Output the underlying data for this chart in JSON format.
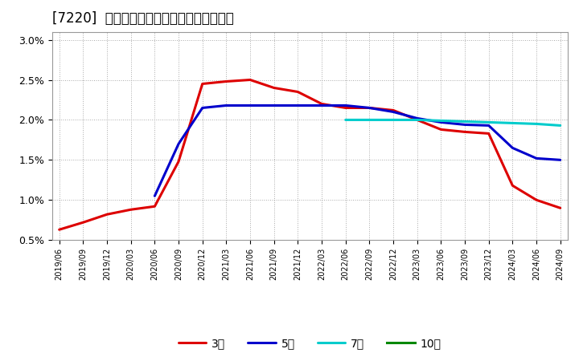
{
  "title": "[7220]  経常利益マージンの標準偏差の推移",
  "title_fontsize": 12,
  "background_color": "#ffffff",
  "grid_color": "#aaaaaa",
  "ylim": [
    0.005,
    0.031
  ],
  "yticks": [
    0.005,
    0.01,
    0.015,
    0.02,
    0.025,
    0.03
  ],
  "ytick_labels": [
    "0.5%",
    "1.0%",
    "1.5%",
    "2.0%",
    "2.5%",
    "3.0%"
  ],
  "legend_labels": [
    "3年",
    "5年",
    "7年",
    "10年"
  ],
  "series": [
    {
      "key": "3yr",
      "color": "#dd0000",
      "lw": 2.2,
      "x": [
        0,
        1,
        2,
        3,
        4,
        5,
        6,
        7,
        8,
        9,
        10,
        11,
        12,
        13,
        14,
        15,
        16,
        17,
        18,
        19,
        20,
        21
      ],
      "y": [
        0.0063,
        0.0072,
        0.0082,
        0.0088,
        0.0092,
        0.0148,
        0.0245,
        0.0248,
        0.025,
        0.024,
        0.0235,
        0.022,
        0.0215,
        0.0215,
        0.0212,
        0.02,
        0.0188,
        0.0185,
        0.0183,
        0.0118,
        0.01,
        0.009
      ]
    },
    {
      "key": "5yr",
      "color": "#0000cc",
      "lw": 2.2,
      "x": [
        4,
        5,
        6,
        7,
        8,
        9,
        10,
        11,
        12,
        13,
        14,
        15,
        16,
        17,
        18,
        19,
        20,
        21
      ],
      "y": [
        0.0105,
        0.017,
        0.0215,
        0.0218,
        0.0218,
        0.0218,
        0.0218,
        0.0218,
        0.0218,
        0.0215,
        0.021,
        0.0202,
        0.0197,
        0.0194,
        0.0193,
        0.0165,
        0.0152,
        0.015
      ]
    },
    {
      "key": "7yr",
      "color": "#00cccc",
      "lw": 2.2,
      "x": [
        12,
        13,
        14,
        15,
        16,
        17,
        18,
        19,
        20,
        21
      ],
      "y": [
        0.02,
        0.02,
        0.02,
        0.02,
        0.0199,
        0.0198,
        0.0197,
        0.0196,
        0.0195,
        0.0193
      ]
    },
    {
      "key": "10yr",
      "color": "#008800",
      "lw": 2.2,
      "x": [],
      "y": []
    }
  ],
  "xtick_indices": [
    0,
    1,
    2,
    3,
    4,
    5,
    6,
    7,
    8,
    9,
    10,
    11,
    12,
    13,
    14,
    15,
    16,
    17,
    18,
    19,
    20,
    21
  ],
  "xtick_labels": [
    "2019/06",
    "2019/09",
    "2019/12",
    "2020/03",
    "2020/06",
    "2020/09",
    "2020/12",
    "2021/03",
    "2021/06",
    "2021/09",
    "2021/12",
    "2022/03",
    "2022/06",
    "2022/09",
    "2022/12",
    "2023/03",
    "2023/06",
    "2023/09",
    "2023/12",
    "2024/03",
    "2024/06",
    "2024/09"
  ]
}
